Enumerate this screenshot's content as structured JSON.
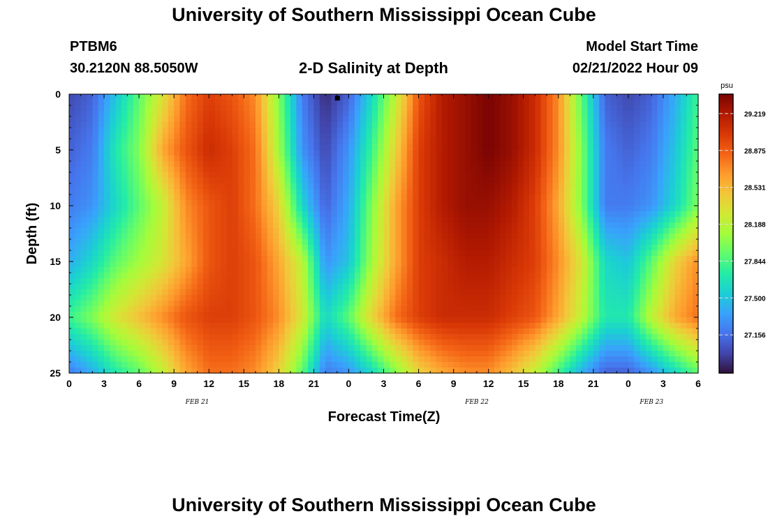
{
  "page": {
    "title_top": "University of Southern Mississippi Ocean Cube",
    "title_bottom": "University of Southern Mississippi Ocean Cube",
    "station": "PTBM6",
    "location": "30.2120N  88.5050W",
    "plot_title": "2-D Salinity at Depth",
    "model_label": "Model Start Time",
    "model_time": "02/21/2022 Hour 09"
  },
  "colors": {
    "colormap": [
      "#30123b",
      "#4145ab",
      "#4675ed",
      "#39a2fc",
      "#1bcfd4",
      "#24eca6",
      "#61fc6c",
      "#a4fc3b",
      "#d1e834",
      "#f3c63a",
      "#fe9b2d",
      "#f36315",
      "#d93806",
      "#b11901",
      "#7a0403"
    ],
    "marker": "#000000",
    "axis": "#000000",
    "cb_tick_line": "#dddddd"
  },
  "chart_data": {
    "type": "heatmap",
    "title": "2-D Salinity at Depth",
    "xlabel": "Forecast Time(Z)",
    "ylabel": "Depth (ft)",
    "x_range_hours": [
      0,
      54
    ],
    "y_range_ft": [
      0,
      25
    ],
    "x_tick_labels": [
      "0",
      "3",
      "6",
      "9",
      "12",
      "15",
      "18",
      "21",
      "0",
      "3",
      "6",
      "9",
      "12",
      "15",
      "18",
      "21",
      "0",
      "3",
      "6"
    ],
    "y_tick_labels": [
      "0",
      "5",
      "10",
      "15",
      "20",
      "25"
    ],
    "date_labels": [
      {
        "text": "FEB 21",
        "hour": 11
      },
      {
        "text": "FEB 22",
        "hour": 35
      },
      {
        "text": "FEB 23",
        "hour": 50
      }
    ],
    "colorbar": {
      "unit": "psu",
      "min": 26.8,
      "max": 29.4,
      "ticks": [
        "29.219",
        "28.875",
        "28.531",
        "28.188",
        "27.844",
        "27.500",
        "27.156"
      ]
    },
    "marker": {
      "hour": 23,
      "depth_ft": 0.2
    },
    "grid_hours": [
      0,
      2,
      4,
      6,
      8,
      10,
      12,
      14,
      16,
      18,
      20,
      22,
      24,
      26,
      28,
      30,
      32,
      34,
      36,
      38,
      40,
      42,
      44,
      46,
      48,
      50,
      52,
      54
    ],
    "grid_depths_ft": [
      0,
      5,
      10,
      15,
      20,
      25
    ],
    "salinity_psu": [
      [
        27.0,
        27.1,
        27.5,
        27.9,
        28.3,
        28.8,
        29.0,
        28.9,
        28.7,
        28.0,
        27.2,
        26.9,
        27.1,
        27.6,
        28.2,
        28.9,
        29.2,
        29.3,
        29.4,
        29.3,
        29.1,
        28.7,
        27.9,
        27.1,
        27.0,
        27.1,
        27.4,
        27.8
      ],
      [
        27.1,
        27.2,
        27.7,
        28.0,
        28.6,
        28.9,
        29.1,
        29.0,
        28.8,
        28.1,
        27.3,
        27.0,
        27.3,
        27.8,
        28.4,
        29.0,
        29.2,
        29.3,
        29.4,
        29.3,
        29.1,
        28.7,
        28.0,
        27.2,
        27.1,
        27.2,
        27.5,
        27.9
      ],
      [
        27.2,
        27.3,
        27.6,
        27.9,
        28.2,
        28.7,
        28.9,
        29.0,
        28.8,
        28.4,
        27.6,
        27.1,
        27.4,
        28.0,
        28.6,
        29.0,
        29.2,
        29.3,
        29.3,
        29.2,
        29.0,
        28.6,
        28.0,
        27.2,
        27.2,
        27.3,
        27.6,
        28.0
      ],
      [
        27.4,
        27.6,
        27.9,
        28.1,
        28.3,
        28.6,
        28.9,
        29.0,
        28.9,
        28.6,
        28.2,
        27.3,
        27.5,
        28.1,
        28.6,
        29.0,
        29.1,
        29.2,
        29.2,
        29.1,
        29.0,
        28.7,
        28.3,
        27.6,
        27.5,
        27.9,
        28.4,
        28.7
      ],
      [
        27.8,
        28.0,
        28.3,
        28.5,
        28.7,
        28.9,
        29.0,
        29.0,
        28.9,
        28.7,
        28.3,
        27.6,
        27.9,
        28.4,
        28.8,
        29.0,
        29.1,
        29.1,
        29.1,
        29.0,
        28.9,
        28.6,
        28.2,
        27.7,
        27.7,
        28.2,
        28.6,
        28.8
      ],
      [
        27.2,
        27.4,
        27.7,
        27.9,
        28.2,
        28.6,
        28.8,
        28.8,
        28.7,
        28.4,
        27.9,
        27.2,
        27.3,
        27.6,
        28.0,
        28.4,
        28.6,
        28.7,
        28.7,
        28.5,
        28.2,
        27.8,
        27.4,
        27.1,
        27.1,
        27.3,
        27.6,
        27.9
      ]
    ]
  }
}
